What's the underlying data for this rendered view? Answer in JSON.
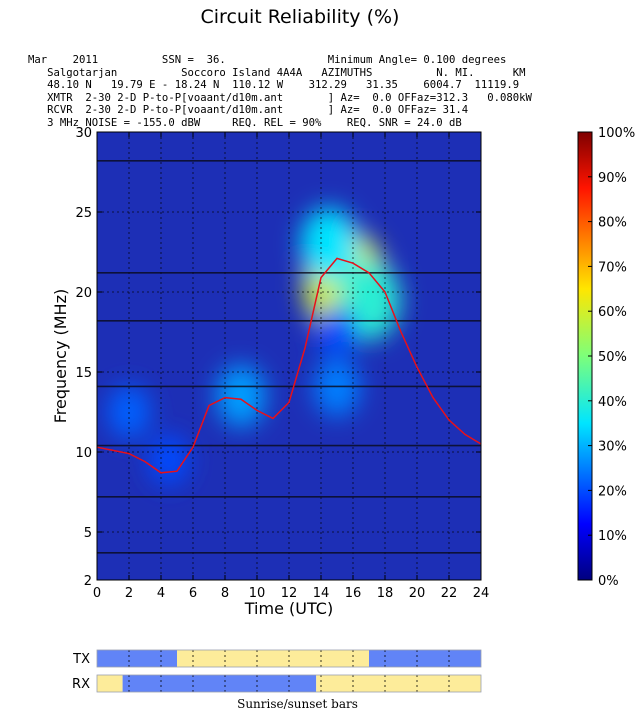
{
  "chart_data": {
    "type": "heatmap",
    "title": "Circuit Reliability (%)",
    "xlabel": "Time (UTC)",
    "ylabel": "Frequency (MHz)",
    "xlim": [
      0,
      24
    ],
    "ylim": [
      2,
      30
    ],
    "xticks": [
      "0",
      "2",
      "4",
      "6",
      "8",
      "10",
      "12",
      "14",
      "16",
      "18",
      "20",
      "22",
      "24"
    ],
    "yticks": [
      "2",
      "5",
      "10",
      "15",
      "20",
      "25",
      "30"
    ],
    "colorbar_ticks": [
      "0%",
      "10%",
      "20%",
      "30%",
      "40%",
      "50%",
      "60%",
      "70%",
      "80%",
      "90%",
      "100%"
    ],
    "colorbar_range": [
      0,
      100
    ],
    "grid": true,
    "header_lines": [
      "Mar    2011          SSN =  36.                Minimum Angle= 0.100 degrees",
      "   Salgotarjan          Soccoro Island 4A4A   AZIMUTHS          N. MI.      KM",
      "   48.10 N   19.79 E - 18.24 N  110.12 W    312.29   31.35    6004.7  11119.9",
      "   XMTR  2-30 2-D P-to-P[voaant/d10m.ant       ] Az=  0.0 OFFaz=312.3   0.080kW",
      "   RCVR  2-30 2-D P-to-P[voaant/d10m.ant       ] Az=  0.0 OFFaz= 31.4",
      "   3 MHz NOISE = -155.0 dBW     REQ. REL = 90%    REQ. SNR = 24.0 dB"
    ],
    "muf_line": {
      "name": "MUF",
      "x": [
        0,
        1,
        2,
        3,
        4,
        5,
        6,
        7,
        8,
        9,
        10,
        11,
        12,
        13,
        14,
        15,
        16,
        17,
        18,
        19,
        20,
        21,
        22,
        23,
        24
      ],
      "y": [
        10.3,
        10.1,
        9.9,
        9.4,
        8.7,
        8.8,
        10.3,
        12.9,
        13.4,
        13.3,
        12.6,
        12.1,
        13.1,
        16.5,
        20.9,
        22.1,
        21.8,
        21.2,
        20.0,
        17.5,
        15.3,
        13.4,
        12.0,
        11.1,
        10.5
      ]
    },
    "reliability_blobs": [
      {
        "time": 15.5,
        "freq": 20.5,
        "value": 60
      },
      {
        "time": 14.5,
        "freq": 23.0,
        "value": 35
      },
      {
        "time": 17.0,
        "freq": 19.5,
        "value": 40
      },
      {
        "time": 9.0,
        "freq": 13.5,
        "value": 28
      },
      {
        "time": 2.0,
        "freq": 12.5,
        "value": 22
      },
      {
        "time": 4.5,
        "freq": 9.5,
        "value": 20
      },
      {
        "time": 15.0,
        "freq": 17.5,
        "value": 20
      },
      {
        "time": 15.0,
        "freq": 14.0,
        "value": 25
      }
    ],
    "sunrise_sunset": {
      "caption": "Sunrise/sunset bars",
      "colors": {
        "night": "#6184f7",
        "day": "#fdec9a"
      },
      "rows": [
        {
          "label": "TX",
          "segments": [
            {
              "from": 0,
              "to": 5,
              "state": "night"
            },
            {
              "from": 5,
              "to": 17,
              "state": "day"
            },
            {
              "from": 17,
              "to": 24,
              "state": "night"
            }
          ]
        },
        {
          "label": "RX",
          "segments": [
            {
              "from": 0,
              "to": 1.6,
              "state": "day"
            },
            {
              "from": 1.6,
              "to": 13.7,
              "state": "night"
            },
            {
              "from": 13.7,
              "to": 24,
              "state": "day"
            }
          ]
        }
      ]
    }
  }
}
